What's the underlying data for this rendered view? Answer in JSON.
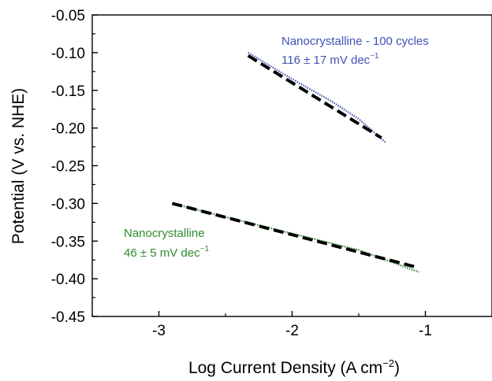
{
  "chart_data": {
    "type": "line",
    "xlabel": "Log Current Density (A cm",
    "xlabel_sup": "−2",
    "xlabel_close": ")",
    "ylabel": "Potential (V vs. NHE)",
    "xlim": [
      -3.5,
      -0.5
    ],
    "ylim": [
      -0.45,
      -0.05
    ],
    "x_ticks": [
      -3,
      -2,
      -1
    ],
    "x_tick_labels": [
      "-3",
      "-2",
      "-1"
    ],
    "y_ticks": [
      -0.45,
      -0.4,
      -0.35,
      -0.3,
      -0.25,
      -0.2,
      -0.15,
      -0.1,
      -0.05
    ],
    "y_tick_labels": [
      "-0.45",
      "-0.40",
      "-0.35",
      "-0.30",
      "-0.25",
      "-0.20",
      "-0.15",
      "-0.10",
      "-0.05"
    ],
    "grid": false,
    "series": [
      {
        "color": "#3f51b5",
        "style": "dotted",
        "x": [
          -2.33,
          -2.0,
          -1.7,
          -1.5,
          -1.3
        ],
        "y": [
          -0.1,
          -0.135,
          -0.165,
          -0.188,
          -0.219
        ]
      },
      {
        "color": "#000000",
        "style": "dashed-fit",
        "x": [
          -2.33,
          -1.33
        ],
        "y": [
          -0.104,
          -0.213
        ]
      },
      {
        "color": "#2e8b2e",
        "style": "dotted",
        "x": [
          -2.9,
          -2.5,
          -2.0,
          -1.5,
          -1.05
        ],
        "y": [
          -0.3,
          -0.318,
          -0.34,
          -0.362,
          -0.391
        ]
      },
      {
        "color": "#000000",
        "style": "dashed-fit",
        "x": [
          -2.9,
          -1.08
        ],
        "y": [
          -0.3,
          -0.384
        ]
      }
    ],
    "annotations": [
      {
        "line1": "Nanocrystalline - 100 cycles",
        "line2": "116 ± 17 mV dec",
        "sup": "−1",
        "color": "#3f51b5"
      },
      {
        "line1": "Nanocrystalline",
        "line2": "46 ± 5 mV dec",
        "sup": "−1",
        "color": "#2e8b2e"
      }
    ]
  }
}
